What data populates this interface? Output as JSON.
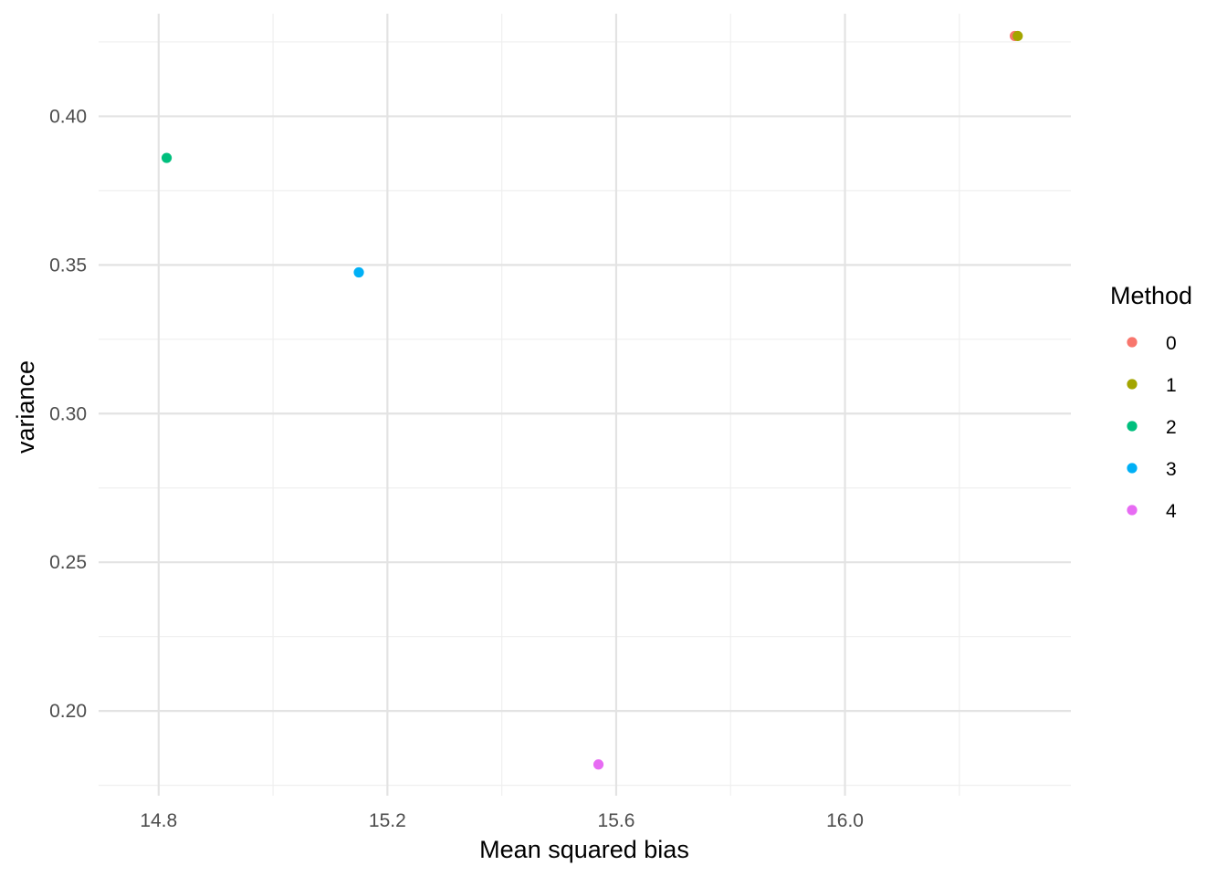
{
  "chart_data": {
    "type": "scatter",
    "title": "",
    "xlabel": "Mean squared bias",
    "ylabel": "variance",
    "xlim": [
      14.695,
      16.395
    ],
    "ylim": [
      0.1715,
      0.4345
    ],
    "x_ticks": [
      14.8,
      15.2,
      15.6,
      16.0
    ],
    "x_tick_labels": [
      "14.8",
      "15.2",
      "15.6",
      "16.0"
    ],
    "x_minor_ticks": [
      15.0,
      15.4,
      15.8,
      16.2
    ],
    "y_ticks": [
      0.2,
      0.25,
      0.3,
      0.35,
      0.4
    ],
    "y_tick_labels": [
      "0.20",
      "0.25",
      "0.30",
      "0.35",
      "0.40"
    ],
    "y_minor_ticks": [
      0.175,
      0.225,
      0.275,
      0.325,
      0.375,
      0.425
    ],
    "grid": true,
    "legend": {
      "title": "Method",
      "position": "right"
    },
    "series": [
      {
        "name": "0",
        "color": "#F8766D",
        "x": [
          16.297
        ],
        "y": [
          0.427
        ]
      },
      {
        "name": "1",
        "color": "#A3A500",
        "x": [
          16.302
        ],
        "y": [
          0.427
        ]
      },
      {
        "name": "2",
        "color": "#00BF7D",
        "x": [
          14.814
        ],
        "y": [
          0.386
        ]
      },
      {
        "name": "3",
        "color": "#00B0F6",
        "x": [
          15.15
        ],
        "y": [
          0.3475
        ]
      },
      {
        "name": "4",
        "color": "#E76BF3",
        "x": [
          15.569
        ],
        "y": [
          0.182
        ]
      }
    ]
  }
}
